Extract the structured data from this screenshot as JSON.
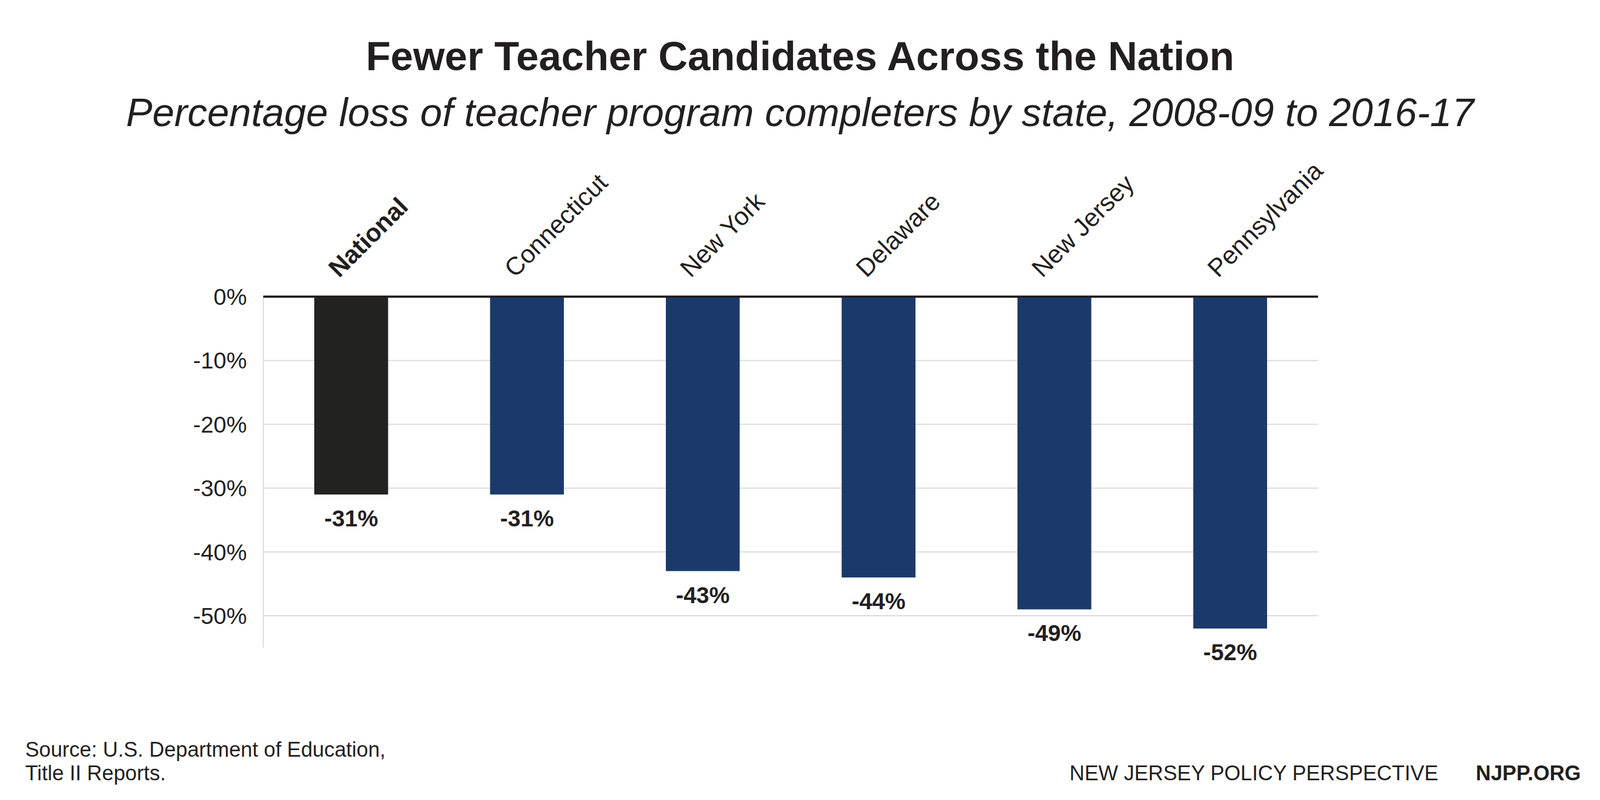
{
  "chart_data": {
    "type": "bar",
    "title": "Fewer Teacher Candidates Across the Nation",
    "subtitle": "Percentage loss of teacher program completers by state, 2008-09 to 2016-17",
    "categories": [
      "National",
      "Connecticut",
      "New York",
      "Delaware",
      "New Jersey",
      "Pennsylvania"
    ],
    "values": [
      -31,
      -31,
      -43,
      -44,
      -49,
      -52
    ],
    "value_labels": [
      "-31%",
      "-31%",
      "-43%",
      "-44%",
      "-49%",
      "-52%"
    ],
    "colors": [
      "#222220",
      "#1b3a6b",
      "#1b3a6b",
      "#1b3a6b",
      "#1b3a6b",
      "#1b3a6b"
    ],
    "ylim": [
      -55,
      0
    ],
    "yticks": [
      {
        "value": 0,
        "label": "0%"
      },
      {
        "value": -10,
        "label": "-10%"
      },
      {
        "value": -20,
        "label": "-20%"
      },
      {
        "value": -30,
        "label": "-30%"
      },
      {
        "value": -40,
        "label": "-40%"
      },
      {
        "value": -50,
        "label": "-50%"
      }
    ],
    "grid": true,
    "data_labels": true,
    "source": [
      "Source: U.S. Department of Education,",
      "Title II Reports."
    ],
    "credit": [
      "NEW JERSEY POLICY PERSPECTIVE",
      "NJPP.ORG"
    ]
  }
}
